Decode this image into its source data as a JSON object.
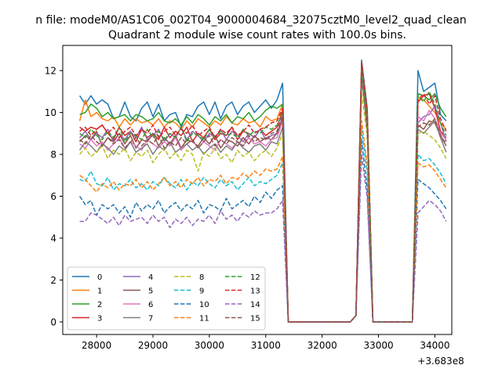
{
  "chart_data": {
    "type": "line",
    "suptitle": "n file: modeM0/AS1C06_002T04_9000004684_32075cztM0_level2_quad_clean",
    "title": "Quadrant 2 module wise count rates with 100.0s bins.",
    "xlabel": "",
    "ylabel": "",
    "x_offset_label": "+3.683e8",
    "xlim": [
      27400,
      34300
    ],
    "ylim": [
      -0.6,
      13.2
    ],
    "xticks": [
      28000,
      29000,
      30000,
      31000,
      32000,
      33000,
      34000
    ],
    "yticks": [
      0,
      2,
      4,
      6,
      8,
      10,
      12
    ],
    "legend_position": "lower-left",
    "legend_columns": 4,
    "x_start": 27700,
    "x_step": 100,
    "series": [
      {
        "name": "0",
        "color": "#1f77b4",
        "dash": "solid",
        "values": [
          10.8,
          10.4,
          10.8,
          10.4,
          10.6,
          10.4,
          9.7,
          9.8,
          10.5,
          9.8,
          9.6,
          10.2,
          10.5,
          9.8,
          10.4,
          9.6,
          9.9,
          10.0,
          9.3,
          9.9,
          9.8,
          10.3,
          10.5,
          9.9,
          10.5,
          9.7,
          10.3,
          10.5,
          9.9,
          10.3,
          10.5,
          10.0,
          10.3,
          10.6,
          10.2,
          10.6,
          11.4,
          0,
          0,
          0,
          0,
          0,
          0,
          0,
          0,
          0,
          0,
          0,
          0,
          0.3,
          12.5,
          10.2,
          0,
          0,
          0,
          0,
          0,
          0,
          0,
          0,
          12.0,
          11.0,
          11.2,
          11.4,
          9.9,
          9.6
        ]
      },
      {
        "name": "1",
        "color": "#ff7f0e",
        "dash": "solid",
        "values": [
          9.6,
          10.6,
          9.8,
          10.0,
          9.7,
          9.6,
          9.8,
          9.3,
          9.7,
          9.4,
          9.7,
          9.5,
          9.6,
          9.4,
          9.7,
          9.3,
          9.6,
          9.5,
          9.2,
          9.6,
          9.3,
          9.7,
          9.5,
          9.3,
          9.6,
          9.4,
          9.8,
          9.5,
          9.4,
          9.7,
          9.5,
          9.6,
          9.3,
          9.8,
          9.6,
          9.7,
          10.4,
          0,
          0,
          0,
          0,
          0,
          0,
          0,
          0,
          0,
          0,
          0,
          0,
          0.3,
          12.2,
          9.9,
          0,
          0,
          0,
          0,
          0,
          0,
          0,
          0,
          10.7,
          10.6,
          10.3,
          10.0,
          9.5,
          9.2
        ]
      },
      {
        "name": "2",
        "color": "#2ca02c",
        "dash": "solid",
        "values": [
          9.9,
          10.0,
          10.4,
          10.2,
          9.8,
          10.0,
          9.7,
          9.8,
          9.9,
          9.6,
          9.9,
          9.8,
          9.6,
          9.7,
          10.0,
          9.6,
          9.5,
          9.7,
          9.4,
          9.8,
          9.5,
          9.9,
          9.7,
          9.4,
          9.8,
          9.6,
          9.9,
          9.5,
          9.8,
          9.7,
          10.0,
          9.6,
          9.8,
          10.1,
          10.3,
          10.2,
          10.4,
          0,
          0,
          0,
          0,
          0,
          0,
          0,
          0,
          0,
          0,
          0,
          0,
          0.3,
          12.4,
          10.0,
          0,
          0,
          0,
          0,
          0,
          0,
          0,
          0,
          10.9,
          10.8,
          10.6,
          10.9,
          10.2,
          9.8
        ]
      },
      {
        "name": "3",
        "color": "#d62728",
        "dash": "solid",
        "values": [
          9.3,
          9.1,
          9.3,
          9.2,
          9.4,
          9.0,
          8.7,
          9.3,
          8.9,
          9.1,
          8.6,
          9.2,
          8.8,
          9.0,
          8.7,
          9.3,
          8.8,
          9.1,
          8.9,
          9.3,
          8.6,
          9.0,
          8.8,
          9.2,
          8.7,
          9.0,
          8.9,
          9.3,
          8.7,
          9.1,
          9.0,
          8.8,
          9.2,
          8.9,
          9.1,
          9.3,
          10.1,
          0,
          0,
          0,
          0,
          0,
          0,
          0,
          0,
          0,
          0,
          0,
          0,
          0.3,
          12.3,
          9.7,
          0,
          0,
          0,
          0,
          0,
          0,
          0,
          0,
          10.5,
          10.8,
          10.9,
          10.2,
          9.1,
          8.8
        ]
      },
      {
        "name": "4",
        "color": "#9467bd",
        "dash": "solid",
        "values": [
          8.8,
          9.1,
          8.7,
          9.0,
          8.8,
          9.2,
          8.6,
          9.0,
          8.7,
          9.1,
          8.8,
          9.3,
          8.7,
          8.9,
          9.2,
          8.6,
          9.0,
          8.8,
          9.3,
          8.7,
          9.1,
          8.9,
          8.6,
          9.0,
          8.8,
          9.2,
          8.7,
          9.1,
          8.9,
          8.6,
          9.0,
          8.8,
          9.2,
          8.7,
          8.9,
          9.0,
          9.8,
          0,
          0,
          0,
          0,
          0,
          0,
          0,
          0,
          0,
          0,
          0,
          0,
          0.3,
          11.9,
          9.5,
          0,
          0,
          0,
          0,
          0,
          0,
          0,
          0,
          9.5,
          9.8,
          9.9,
          10.3,
          9.5,
          8.6
        ]
      },
      {
        "name": "5",
        "color": "#8c564b",
        "dash": "solid",
        "values": [
          8.6,
          8.9,
          8.7,
          9.1,
          8.4,
          8.8,
          8.6,
          9.0,
          8.5,
          8.9,
          8.3,
          8.7,
          8.6,
          9.0,
          8.4,
          8.8,
          8.5,
          8.9,
          8.3,
          8.7,
          8.6,
          8.4,
          8.8,
          8.5,
          8.9,
          8.3,
          8.7,
          8.6,
          8.4,
          8.8,
          8.5,
          8.9,
          8.6,
          8.8,
          8.7,
          9.0,
          9.7,
          0,
          0,
          0,
          0,
          0,
          0,
          0,
          0,
          0,
          0,
          0,
          0,
          0.3,
          12.1,
          9.4,
          0,
          0,
          0,
          0,
          0,
          0,
          0,
          0,
          9.4,
          9.2,
          9.6,
          9.5,
          8.9,
          8.4
        ]
      },
      {
        "name": "6",
        "color": "#e377c2",
        "dash": "solid",
        "values": [
          8.5,
          8.3,
          8.7,
          8.4,
          8.6,
          8.2,
          8.5,
          8.8,
          8.3,
          8.6,
          8.4,
          8.2,
          8.7,
          8.5,
          8.3,
          8.6,
          8.4,
          8.8,
          8.2,
          8.5,
          8.7,
          8.3,
          8.6,
          8.4,
          8.2,
          8.7,
          8.5,
          8.3,
          8.6,
          8.4,
          8.8,
          8.5,
          8.6,
          8.4,
          8.7,
          8.8,
          9.6,
          0,
          0,
          0,
          0,
          0,
          0,
          0,
          0,
          0,
          0,
          0,
          0,
          0.3,
          12.0,
          9.3,
          0,
          0,
          0,
          0,
          0,
          0,
          0,
          0,
          9.8,
          9.6,
          10.1,
          9.7,
          9.0,
          8.7
        ]
      },
      {
        "name": "7",
        "color": "#7f7f7f",
        "dash": "solid",
        "values": [
          8.2,
          8.6,
          8.4,
          8.1,
          8.5,
          8.3,
          8.0,
          8.4,
          8.2,
          8.6,
          8.1,
          8.3,
          8.5,
          8.0,
          8.4,
          8.2,
          8.6,
          8.1,
          8.3,
          8.5,
          8.2,
          8.4,
          8.0,
          8.3,
          8.5,
          8.1,
          8.4,
          8.2,
          8.6,
          8.3,
          8.1,
          8.4,
          8.5,
          8.2,
          8.6,
          8.5,
          9.3,
          0,
          0,
          0,
          0,
          0,
          0,
          0,
          0,
          0,
          0,
          0,
          0,
          0.3,
          11.8,
          9.2,
          0,
          0,
          0,
          0,
          0,
          0,
          0,
          0,
          9.2,
          9.0,
          9.3,
          9.6,
          8.8,
          8.1
        ]
      },
      {
        "name": "8",
        "color": "#bcbd22",
        "dash": "dashed",
        "values": [
          8.0,
          8.3,
          7.9,
          8.1,
          8.4,
          7.8,
          8.2,
          8.0,
          8.3,
          7.7,
          8.1,
          7.9,
          8.2,
          7.6,
          8.0,
          8.3,
          7.8,
          8.1,
          7.7,
          8.2,
          8.0,
          7.2,
          8.1,
          7.9,
          8.3,
          7.8,
          8.0,
          7.6,
          8.2,
          7.9,
          8.1,
          7.7,
          8.0,
          8.2,
          7.9,
          8.3,
          9.0,
          0,
          0,
          0,
          0,
          0,
          0,
          0,
          0,
          0,
          0,
          0,
          0,
          0.3,
          10.9,
          8.9,
          0,
          0,
          0,
          0,
          0,
          0,
          0,
          0,
          9.0,
          9.1,
          8.9,
          8.7,
          8.3,
          7.8
        ]
      },
      {
        "name": "9",
        "color": "#17becf",
        "dash": "dashed",
        "values": [
          6.8,
          6.7,
          7.2,
          6.6,
          6.5,
          6.9,
          6.3,
          6.6,
          6.5,
          6.8,
          6.4,
          6.6,
          6.3,
          6.7,
          6.5,
          6.9,
          6.6,
          6.4,
          6.8,
          6.3,
          6.7,
          6.5,
          6.9,
          6.6,
          6.4,
          6.8,
          6.5,
          6.7,
          6.3,
          6.6,
          6.9,
          6.5,
          6.7,
          6.6,
          6.8,
          7.0,
          7.6,
          0,
          0,
          0,
          0,
          0,
          0,
          0,
          0,
          0,
          0,
          0,
          0,
          0.3,
          9.2,
          7.1,
          0,
          0,
          0,
          0,
          0,
          0,
          0,
          0,
          8.0,
          7.7,
          7.8,
          7.5,
          7.1,
          6.6
        ]
      },
      {
        "name": "10",
        "color": "#1f77b4",
        "dash": "dashed",
        "values": [
          6.0,
          5.6,
          5.8,
          5.1,
          5.6,
          5.4,
          5.6,
          5.2,
          5.5,
          5.0,
          5.7,
          5.3,
          5.6,
          5.4,
          5.8,
          5.2,
          5.5,
          5.7,
          5.3,
          5.6,
          5.4,
          5.8,
          5.2,
          5.6,
          5.5,
          5.3,
          5.9,
          5.4,
          5.6,
          5.8,
          5.5,
          6.0,
          5.7,
          6.2,
          5.9,
          6.3,
          6.5,
          0,
          0,
          0,
          0,
          0,
          0,
          0,
          0,
          0,
          0,
          0,
          0,
          0.3,
          8.7,
          6.3,
          0,
          0,
          0,
          0,
          0,
          0,
          0,
          0,
          6.8,
          6.6,
          6.4,
          6.1,
          5.8,
          5.4
        ]
      },
      {
        "name": "11",
        "color": "#ff7f0e",
        "dash": "dashed",
        "values": [
          7.0,
          6.8,
          6.5,
          6.2,
          6.6,
          6.4,
          6.7,
          6.3,
          6.6,
          6.5,
          6.8,
          6.4,
          6.7,
          6.3,
          6.6,
          6.9,
          6.5,
          6.7,
          6.4,
          6.8,
          6.6,
          6.9,
          6.5,
          6.8,
          6.7,
          7.0,
          6.6,
          6.9,
          6.8,
          7.1,
          6.9,
          7.2,
          7.0,
          7.3,
          7.2,
          7.3,
          7.9,
          0,
          0,
          0,
          0,
          0,
          0,
          0,
          0,
          0,
          0,
          0,
          0,
          0.3,
          9.6,
          7.5,
          0,
          0,
          0,
          0,
          0,
          0,
          0,
          0,
          7.6,
          7.4,
          7.5,
          7.2,
          6.8,
          6.4
        ]
      },
      {
        "name": "12",
        "color": "#2ca02c",
        "dash": "dashed",
        "values": [
          9.0,
          8.8,
          9.2,
          8.9,
          8.7,
          9.1,
          8.8,
          9.3,
          8.6,
          9.0,
          8.9,
          8.7,
          9.2,
          8.8,
          9.1,
          8.7,
          9.0,
          8.8,
          9.3,
          8.6,
          9.0,
          8.9,
          8.7,
          9.2,
          8.8,
          9.1,
          8.9,
          9.0,
          8.8,
          9.2,
          8.9,
          9.1,
          9.0,
          9.3,
          9.2,
          9.4,
          10.0,
          0,
          0,
          0,
          0,
          0,
          0,
          0,
          0,
          0,
          0,
          0,
          0,
          0.3,
          12.2,
          9.8,
          0,
          0,
          0,
          0,
          0,
          0,
          0,
          0,
          10.8,
          10.5,
          11.0,
          10.4,
          9.5,
          8.9
        ]
      },
      {
        "name": "13",
        "color": "#d62728",
        "dash": "dashed",
        "values": [
          9.1,
          9.3,
          8.9,
          9.2,
          9.4,
          9.0,
          9.3,
          8.8,
          9.1,
          9.3,
          8.9,
          9.2,
          9.0,
          9.4,
          8.8,
          9.1,
          9.3,
          8.9,
          9.2,
          9.0,
          9.4,
          8.9,
          9.1,
          9.3,
          8.8,
          9.2,
          9.0,
          9.3,
          8.9,
          9.1,
          9.4,
          9.0,
          9.2,
          9.3,
          9.5,
          9.6,
          10.2,
          0,
          0,
          0,
          0,
          0,
          0,
          0,
          0,
          0,
          0,
          0,
          0,
          0.3,
          12.4,
          10.1,
          0,
          0,
          0,
          0,
          0,
          0,
          0,
          0,
          10.6,
          10.9,
          10.4,
          10.8,
          9.7,
          9.1
        ]
      },
      {
        "name": "14",
        "color": "#9467bd",
        "dash": "dashed",
        "values": [
          4.8,
          4.8,
          5.2,
          5.1,
          4.9,
          4.7,
          5.0,
          4.6,
          5.1,
          4.8,
          4.9,
          5.0,
          4.7,
          5.1,
          4.8,
          5.0,
          4.5,
          4.9,
          4.7,
          5.0,
          4.6,
          4.9,
          4.8,
          5.1,
          4.7,
          5.3,
          4.9,
          5.1,
          4.8,
          5.2,
          5.0,
          5.3,
          5.1,
          5.2,
          5.2,
          5.4,
          5.8,
          0,
          0,
          0,
          0,
          0,
          0,
          0,
          0,
          0,
          0,
          0,
          0,
          0.3,
          8.0,
          5.9,
          0,
          0,
          0,
          0,
          0,
          0,
          0,
          0,
          5.2,
          5.5,
          5.8,
          5.6,
          5.3,
          4.8
        ]
      },
      {
        "name": "15",
        "color": "#8c564b",
        "dash": "dashed",
        "values": [
          8.7,
          8.5,
          8.9,
          8.6,
          8.4,
          8.8,
          8.5,
          8.7,
          8.3,
          8.6,
          8.8,
          8.4,
          8.7,
          8.5,
          8.9,
          8.3,
          8.6,
          8.4,
          8.8,
          8.5,
          8.7,
          8.3,
          8.6,
          8.9,
          8.4,
          8.7,
          8.5,
          8.8,
          8.6,
          8.4,
          8.9,
          8.6,
          8.8,
          8.7,
          9.0,
          9.1,
          9.9,
          0,
          0,
          0,
          0,
          0,
          0,
          0,
          0,
          0,
          0,
          0,
          0,
          0.3,
          11.7,
          9.2,
          0,
          0,
          0,
          0,
          0,
          0,
          0,
          0,
          9.3,
          9.5,
          9.4,
          9.7,
          8.9,
          8.5
        ]
      }
    ]
  }
}
